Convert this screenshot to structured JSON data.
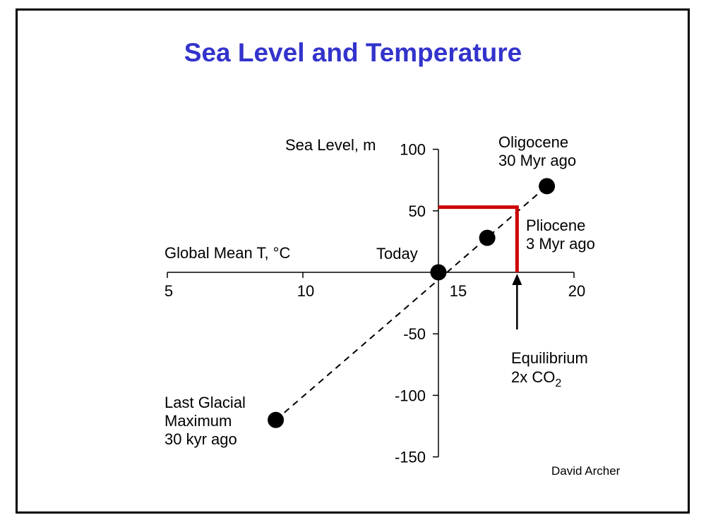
{
  "chart_data": {
    "type": "scatter",
    "title": "Sea Level and Temperature",
    "xlabel": "Global Mean T, °C",
    "ylabel": "Sea Level, m",
    "xlim": [
      5,
      20
    ],
    "ylim": [
      -150,
      100
    ],
    "xticks": [
      5,
      10,
      15,
      20
    ],
    "yticks": [
      100,
      50,
      -50,
      -100,
      -150
    ],
    "points": [
      {
        "name": "Last Glacial Maximum",
        "lines": [
          "Last Glacial",
          "Maximum",
          "30 kyr ago"
        ],
        "x": 9.0,
        "y": -120
      },
      {
        "name": "Today",
        "lines": [
          "Today"
        ],
        "x": 15.0,
        "y": 0
      },
      {
        "name": "Pliocene",
        "lines": [
          "Pliocene",
          "3 Myr ago"
        ],
        "x": 16.8,
        "y": 28
      },
      {
        "name": "Oligocene",
        "lines": [
          "Oligocene",
          "30 Myr ago"
        ],
        "x": 19.0,
        "y": 70
      }
    ],
    "trend_line": {
      "style": "dashed",
      "from": [
        9.0,
        -120
      ],
      "to": [
        19.0,
        70
      ]
    },
    "equilibrium": {
      "x": 17.9,
      "y": 53,
      "color": "#cc0000",
      "label_line1": "Equilibrium",
      "label_line2_main": "2x CO",
      "label_line2_sub": "2"
    },
    "grid": false,
    "credit": "David Archer"
  }
}
